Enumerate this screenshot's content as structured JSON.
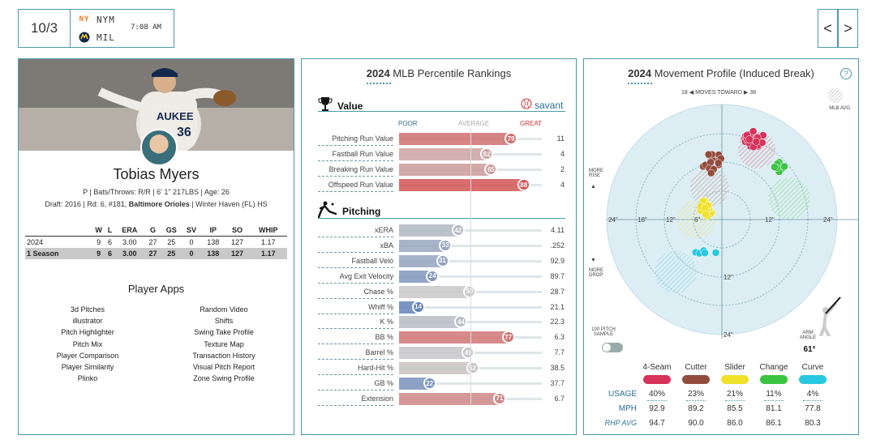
{
  "header": {
    "date": "10/3",
    "teams": [
      {
        "abbr": "NYM",
        "logo_icon": "mets-logo",
        "color": "#f47b20"
      },
      {
        "abbr": "MIL",
        "logo_icon": "brewers-logo",
        "color": "#13294b"
      }
    ],
    "time": "7:08 AM",
    "prev_label": "<",
    "next_label": ">"
  },
  "player": {
    "name": "Tobias Myers",
    "bio_line": "P | Bats/Throws: R/R | 6' 1\" 217LBS | Age: 26",
    "draft_prefix": "Draft: 2016 | Rd: 6, #181, ",
    "draft_team": "Baltimore Orioles",
    "draft_suffix": " | Winter Haven (FL) HS",
    "stats": {
      "headers": [
        "",
        "W",
        "L",
        "ERA",
        "G",
        "GS",
        "SV",
        "IP",
        "SO",
        "WHIP"
      ],
      "rows": [
        [
          "2024",
          "9",
          "6",
          "3.00",
          "27",
          "25",
          "0",
          "138",
          "127",
          "1.17"
        ],
        [
          "1 Season",
          "9",
          "6",
          "3.00",
          "27",
          "25",
          "0",
          "138",
          "127",
          "1.17"
        ]
      ]
    },
    "apps_title": "Player Apps",
    "apps_left": [
      "3d Pitches",
      "illustrator",
      "Pitch Highlighter",
      "Pitch Mix",
      "Player Comparison",
      "Player Similarity",
      "Plinko"
    ],
    "apps_right": [
      "Random Video",
      "Shifts",
      "Swing Take Profile",
      "Texture Map",
      "Transaction History",
      "Visual Pitch Report",
      "Zone Swing Profile"
    ]
  },
  "percentiles": {
    "title_year": "2024",
    "title_text": " MLB Percentile Rankings",
    "value_section": "Value",
    "pitching_section": "Pitching",
    "savant_label": "savant",
    "scale": {
      "poor": "POOR",
      "average": "AVERAGE",
      "great": "GREAT"
    },
    "value_rows": [
      {
        "label": "Pitching Run Value",
        "pct": 79,
        "value": "11"
      },
      {
        "label": "Fastball Run Value",
        "pct": 62,
        "value": "4"
      },
      {
        "label": "Breaking Run Value",
        "pct": 65,
        "value": "2"
      },
      {
        "label": "Offspeed Run Value",
        "pct": 88,
        "value": "4"
      }
    ],
    "pitching_rows": [
      {
        "label": "xERA",
        "pct": 42,
        "value": "4.11"
      },
      {
        "label": "xBA",
        "pct": 33,
        "value": ".252"
      },
      {
        "label": "Fastball Velo",
        "pct": 31,
        "value": "92.9"
      },
      {
        "label": "Avg Exit Velocity",
        "pct": 24,
        "value": "89.7"
      },
      {
        "label": "Chase %",
        "pct": 50,
        "value": "28.7"
      },
      {
        "label": "Whiff %",
        "pct": 14,
        "value": "21.1"
      },
      {
        "label": "K %",
        "pct": 44,
        "value": "22.3"
      },
      {
        "label": "BB %",
        "pct": 77,
        "value": "6.3"
      },
      {
        "label": "Barrel %",
        "pct": 49,
        "value": "7.7"
      },
      {
        "label": "Hard-Hit %",
        "pct": 52,
        "value": "38.5"
      },
      {
        "label": "GB %",
        "pct": 22,
        "value": "37.7"
      },
      {
        "label": "Extension",
        "pct": 71,
        "value": "6.7"
      }
    ]
  },
  "movement": {
    "title_year": "2024",
    "title_text": " Movement Profile (Induced Break)",
    "help_label": "?",
    "moves_toward_left": "18",
    "moves_toward_text": "MOVES TOWARD",
    "moves_toward_right": "38",
    "mlb_avg_label": "MLB AVG.",
    "more_rise": "MORE RISE",
    "more_drop": "MORE DROP",
    "axis_labels": {
      "h_left_outer": "24\"",
      "h_left_mid": "18\"",
      "h_left_inner": "12\"",
      "h_left_core": "6\"",
      "h_right_inner": "12\"",
      "h_right_outer": "24\"",
      "v_low": "12\"",
      "v_bottom": "24\""
    },
    "sample_label": "100 PITCH SAMPLE",
    "arm_angle_label": "ARM ANGLE",
    "arm_angle_value": "61°",
    "pitches": [
      {
        "name": "4-Seam",
        "color": "#d6325a",
        "usage": "40%",
        "mph": "92.9",
        "rhp": "94.7"
      },
      {
        "name": "Cutter",
        "color": "#934c3c",
        "usage": "23%",
        "mph": "89.2",
        "rhp": "90.0"
      },
      {
        "name": "Slider",
        "color": "#efe12a",
        "usage": "21%",
        "mph": "85.5",
        "rhp": "86.0"
      },
      {
        "name": "Change",
        "color": "#3bc441",
        "usage": "11%",
        "mph": "81.1",
        "rhp": "86.1"
      },
      {
        "name": "Curve",
        "color": "#27c8e0",
        "usage": "4%",
        "mph": "77.8",
        "rhp": "80.3"
      }
    ],
    "row_labels": {
      "usage": "USAGE",
      "mph": "MPH",
      "rhp": "RHP AVG"
    }
  }
}
